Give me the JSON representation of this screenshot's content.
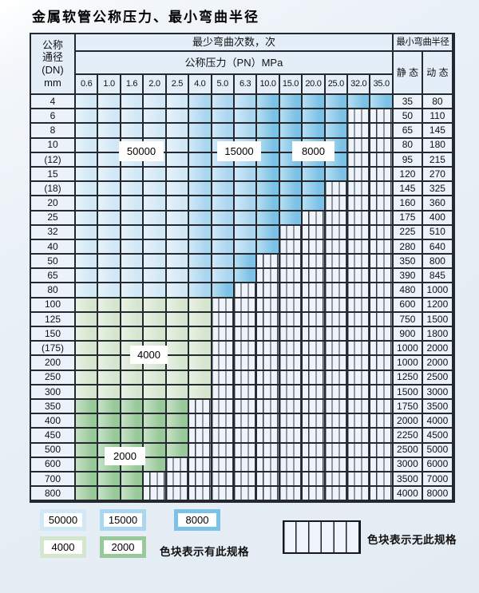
{
  "title": "金属软管公称压力、最小弯曲半径",
  "table": {
    "header": {
      "dn_label_lines": [
        "公称",
        "通径",
        "(DN)",
        "mm"
      ],
      "cycles_label": "最少弯曲次数，次",
      "pressure_label": "公称压力（PN）MPa",
      "pressures": [
        "0.6",
        "1.0",
        "1.6",
        "2.0",
        "2.5",
        "4.0",
        "5.0",
        "6.3",
        "10.0",
        "15.0",
        "20.0",
        "25.0",
        "32.0",
        "35.0"
      ],
      "radius_label": "最小弯曲半径",
      "static_label": "静 态",
      "dynamic_label": "动 态"
    },
    "rows": [
      {
        "dn": "4",
        "specs": [
          {
            "v": "50000",
            "n": 5
          },
          {
            "v": "15000",
            "n": 3
          },
          {
            "v": "8000",
            "n": 6
          }
        ],
        "static": "35",
        "dynamic": "80"
      },
      {
        "dn": "6",
        "specs": [
          {
            "v": "50000",
            "n": 5
          },
          {
            "v": "15000",
            "n": 3
          },
          {
            "v": "8000",
            "n": 4
          }
        ],
        "static": "50",
        "dynamic": "110"
      },
      {
        "dn": "8",
        "specs": [
          {
            "v": "50000",
            "n": 5
          },
          {
            "v": "15000",
            "n": 3
          },
          {
            "v": "8000",
            "n": 4
          }
        ],
        "static": "65",
        "dynamic": "145"
      },
      {
        "dn": "10",
        "specs": [
          {
            "v": "50000",
            "n": 5
          },
          {
            "v": "15000",
            "n": 3
          },
          {
            "v": "8000",
            "n": 4
          }
        ],
        "static": "80",
        "dynamic": "180"
      },
      {
        "dn": "(12)",
        "specs": [
          {
            "v": "50000",
            "n": 5
          },
          {
            "v": "15000",
            "n": 3
          },
          {
            "v": "8000",
            "n": 4
          }
        ],
        "static": "95",
        "dynamic": "215"
      },
      {
        "dn": "15",
        "specs": [
          {
            "v": "50000",
            "n": 5
          },
          {
            "v": "15000",
            "n": 3
          },
          {
            "v": "8000",
            "n": 4
          }
        ],
        "static": "120",
        "dynamic": "270"
      },
      {
        "dn": "(18)",
        "specs": [
          {
            "v": "50000",
            "n": 5
          },
          {
            "v": "15000",
            "n": 3
          },
          {
            "v": "8000",
            "n": 3
          }
        ],
        "static": "145",
        "dynamic": "325"
      },
      {
        "dn": "20",
        "specs": [
          {
            "v": "50000",
            "n": 5
          },
          {
            "v": "15000",
            "n": 3
          },
          {
            "v": "8000",
            "n": 3
          }
        ],
        "static": "160",
        "dynamic": "360"
      },
      {
        "dn": "25",
        "specs": [
          {
            "v": "50000",
            "n": 5
          },
          {
            "v": "15000",
            "n": 3
          },
          {
            "v": "8000",
            "n": 2
          }
        ],
        "static": "175",
        "dynamic": "400"
      },
      {
        "dn": "32",
        "specs": [
          {
            "v": "50000",
            "n": 5
          },
          {
            "v": "15000",
            "n": 3
          },
          {
            "v": "8000",
            "n": 1
          }
        ],
        "static": "225",
        "dynamic": "510"
      },
      {
        "dn": "40",
        "specs": [
          {
            "v": "50000",
            "n": 5
          },
          {
            "v": "15000",
            "n": 3
          },
          {
            "v": "8000",
            "n": 1
          }
        ],
        "static": "280",
        "dynamic": "640"
      },
      {
        "dn": "50",
        "specs": [
          {
            "v": "50000",
            "n": 5
          },
          {
            "v": "15000",
            "n": 2
          },
          {
            "v": "8000",
            "n": 1
          }
        ],
        "static": "350",
        "dynamic": "800"
      },
      {
        "dn": "65",
        "specs": [
          {
            "v": "50000",
            "n": 5
          },
          {
            "v": "15000",
            "n": 2
          },
          {
            "v": "8000",
            "n": 1
          }
        ],
        "static": "390",
        "dynamic": "845"
      },
      {
        "dn": "80",
        "specs": [
          {
            "v": "50000",
            "n": 5
          },
          {
            "v": "15000",
            "n": 1
          },
          {
            "v": "8000",
            "n": 1
          }
        ],
        "static": "480",
        "dynamic": "1000"
      },
      {
        "dn": "100",
        "specs": [
          {
            "v": "4000",
            "n": 6
          }
        ],
        "static": "600",
        "dynamic": "1200"
      },
      {
        "dn": "125",
        "specs": [
          {
            "v": "4000",
            "n": 6
          }
        ],
        "static": "750",
        "dynamic": "1500"
      },
      {
        "dn": "150",
        "specs": [
          {
            "v": "4000",
            "n": 6
          }
        ],
        "static": "900",
        "dynamic": "1800"
      },
      {
        "dn": "(175)",
        "specs": [
          {
            "v": "4000",
            "n": 6
          }
        ],
        "static": "1000",
        "dynamic": "2000"
      },
      {
        "dn": "200",
        "specs": [
          {
            "v": "4000",
            "n": 6
          }
        ],
        "static": "1000",
        "dynamic": "2000"
      },
      {
        "dn": "250",
        "specs": [
          {
            "v": "4000",
            "n": 6
          }
        ],
        "static": "1250",
        "dynamic": "2500"
      },
      {
        "dn": "300",
        "specs": [
          {
            "v": "4000",
            "n": 6
          }
        ],
        "static": "1500",
        "dynamic": "3000"
      },
      {
        "dn": "350",
        "specs": [
          {
            "v": "2000",
            "n": 5
          }
        ],
        "static": "1750",
        "dynamic": "3500"
      },
      {
        "dn": "400",
        "specs": [
          {
            "v": "2000",
            "n": 5
          }
        ],
        "static": "2000",
        "dynamic": "4000"
      },
      {
        "dn": "450",
        "specs": [
          {
            "v": "2000",
            "n": 5
          }
        ],
        "static": "2250",
        "dynamic": "4500"
      },
      {
        "dn": "500",
        "specs": [
          {
            "v": "2000",
            "n": 5
          }
        ],
        "static": "2500",
        "dynamic": "5000"
      },
      {
        "dn": "600",
        "specs": [
          {
            "v": "2000",
            "n": 4
          }
        ],
        "static": "3000",
        "dynamic": "6000"
      },
      {
        "dn": "700",
        "specs": [
          {
            "v": "2000",
            "n": 3
          }
        ],
        "static": "3500",
        "dynamic": "7000"
      },
      {
        "dn": "800",
        "specs": [
          {
            "v": "2000",
            "n": 3
          }
        ],
        "static": "4000",
        "dynamic": "8000"
      }
    ],
    "overlays": [
      {
        "text": "50000"
      },
      {
        "text": "15000"
      },
      {
        "text": "8000"
      },
      {
        "text": "4000"
      },
      {
        "text": "2000"
      }
    ]
  },
  "legend": {
    "swatches": [
      {
        "value": "50000",
        "key": "c50000"
      },
      {
        "value": "15000",
        "key": "c15000"
      },
      {
        "value": "8000",
        "key": "c8000"
      },
      {
        "value": "4000",
        "key": "c4000"
      },
      {
        "value": "2000",
        "key": "c2000"
      }
    ],
    "has_spec_label": "色块表示有此规格",
    "no_spec_label": "色块表示无此规格"
  },
  "colors": {
    "c50000": "#d2e8f6",
    "c15000": "#abd6f0",
    "c8000": "#7cc2e6",
    "c4000": "#d5e6cf",
    "c2000": "#98c999"
  }
}
